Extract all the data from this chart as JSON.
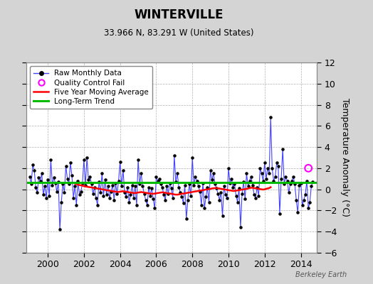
{
  "title": "WINTERVILLE",
  "subtitle": "33.966 N, 83.291 W (United States)",
  "ylabel": "Temperature Anomaly (°C)",
  "ylim": [
    -6,
    12
  ],
  "yticks": [
    -6,
    -4,
    -2,
    0,
    2,
    4,
    6,
    8,
    10,
    12
  ],
  "xlim": [
    1998.8,
    2014.9
  ],
  "xticks": [
    2000,
    2002,
    2004,
    2006,
    2008,
    2010,
    2012,
    2014
  ],
  "background_color": "#d4d4d4",
  "plot_bg_color": "#ffffff",
  "grid_color": "#b0b0b0",
  "raw_color": "#4444ff",
  "dot_color": "#000000",
  "ma_color": "#ff0000",
  "trend_color": "#00bb00",
  "qc_color": "#ff00ff",
  "watermark": "Berkeley Earth",
  "long_term_trend_value": 0.65,
  "raw_data": [
    [
      1999.0,
      1.2
    ],
    [
      1999.083,
      0.5
    ],
    [
      1999.167,
      2.3
    ],
    [
      1999.25,
      1.8
    ],
    [
      1999.333,
      0.2
    ],
    [
      1999.417,
      -0.3
    ],
    [
      1999.5,
      1.1
    ],
    [
      1999.583,
      0.8
    ],
    [
      1999.667,
      1.5
    ],
    [
      1999.75,
      -0.5
    ],
    [
      1999.833,
      0.3
    ],
    [
      1999.917,
      -0.8
    ],
    [
      2000.0,
      0.9
    ],
    [
      2000.083,
      -0.6
    ],
    [
      2000.167,
      2.8
    ],
    [
      2000.25,
      0.4
    ],
    [
      2000.333,
      1.1
    ],
    [
      2000.417,
      0.6
    ],
    [
      2000.5,
      -0.2
    ],
    [
      2000.583,
      0.7
    ],
    [
      2000.667,
      -3.8
    ],
    [
      2000.75,
      -1.2
    ],
    [
      2000.833,
      0.5
    ],
    [
      2000.917,
      -0.3
    ],
    [
      2001.0,
      2.2
    ],
    [
      2001.083,
      1.0
    ],
    [
      2001.167,
      0.5
    ],
    [
      2001.25,
      2.5
    ],
    [
      2001.333,
      1.3
    ],
    [
      2001.417,
      -0.8
    ],
    [
      2001.5,
      0.3
    ],
    [
      2001.583,
      -1.5
    ],
    [
      2001.667,
      0.8
    ],
    [
      2001.75,
      -0.5
    ],
    [
      2001.833,
      -0.2
    ],
    [
      2001.917,
      0.6
    ],
    [
      2002.0,
      2.8
    ],
    [
      2002.083,
      0.4
    ],
    [
      2002.167,
      3.0
    ],
    [
      2002.25,
      0.9
    ],
    [
      2002.333,
      1.2
    ],
    [
      2002.417,
      0.5
    ],
    [
      2002.5,
      -0.4
    ],
    [
      2002.583,
      0.2
    ],
    [
      2002.667,
      -0.8
    ],
    [
      2002.75,
      -1.5
    ],
    [
      2002.833,
      0.7
    ],
    [
      2002.917,
      -0.3
    ],
    [
      2003.0,
      1.5
    ],
    [
      2003.083,
      -0.6
    ],
    [
      2003.167,
      0.9
    ],
    [
      2003.25,
      -0.5
    ],
    [
      2003.333,
      0.3
    ],
    [
      2003.417,
      -0.8
    ],
    [
      2003.5,
      -0.2
    ],
    [
      2003.583,
      0.4
    ],
    [
      2003.667,
      -1.0
    ],
    [
      2003.75,
      0.6
    ],
    [
      2003.833,
      -0.4
    ],
    [
      2003.917,
      0.8
    ],
    [
      2004.0,
      2.6
    ],
    [
      2004.083,
      0.3
    ],
    [
      2004.167,
      1.8
    ],
    [
      2004.25,
      -0.3
    ],
    [
      2004.333,
      -0.7
    ],
    [
      2004.417,
      0.2
    ],
    [
      2004.5,
      -1.2
    ],
    [
      2004.583,
      -0.5
    ],
    [
      2004.667,
      0.4
    ],
    [
      2004.75,
      -0.8
    ],
    [
      2004.833,
      0.3
    ],
    [
      2004.917,
      -1.5
    ],
    [
      2005.0,
      2.8
    ],
    [
      2005.083,
      0.5
    ],
    [
      2005.167,
      1.5
    ],
    [
      2005.25,
      0.3
    ],
    [
      2005.333,
      -0.4
    ],
    [
      2005.417,
      -1.0
    ],
    [
      2005.5,
      -1.5
    ],
    [
      2005.583,
      0.2
    ],
    [
      2005.667,
      -0.6
    ],
    [
      2005.75,
      0.1
    ],
    [
      2005.833,
      -0.9
    ],
    [
      2005.917,
      -1.8
    ],
    [
      2006.0,
      1.2
    ],
    [
      2006.083,
      0.8
    ],
    [
      2006.167,
      1.0
    ],
    [
      2006.25,
      0.5
    ],
    [
      2006.333,
      0.2
    ],
    [
      2006.417,
      -0.5
    ],
    [
      2006.5,
      -1.0
    ],
    [
      2006.583,
      0.3
    ],
    [
      2006.667,
      -0.4
    ],
    [
      2006.75,
      0.6
    ],
    [
      2006.833,
      0.1
    ],
    [
      2006.917,
      -0.8
    ],
    [
      2007.0,
      3.2
    ],
    [
      2007.083,
      0.7
    ],
    [
      2007.167,
      1.5
    ],
    [
      2007.25,
      0.2
    ],
    [
      2007.333,
      -0.3
    ],
    [
      2007.417,
      -0.7
    ],
    [
      2007.5,
      -1.3
    ],
    [
      2007.583,
      0.4
    ],
    [
      2007.667,
      -2.8
    ],
    [
      2007.75,
      -1.0
    ],
    [
      2007.833,
      0.5
    ],
    [
      2007.917,
      -0.6
    ],
    [
      2008.0,
      3.0
    ],
    [
      2008.083,
      0.4
    ],
    [
      2008.167,
      1.2
    ],
    [
      2008.25,
      0.8
    ],
    [
      2008.333,
      0.3
    ],
    [
      2008.417,
      -0.2
    ],
    [
      2008.5,
      -1.5
    ],
    [
      2008.583,
      0.6
    ],
    [
      2008.667,
      -1.8
    ],
    [
      2008.75,
      -0.7
    ],
    [
      2008.833,
      0.2
    ],
    [
      2008.917,
      -1.2
    ],
    [
      2009.0,
      1.8
    ],
    [
      2009.083,
      0.9
    ],
    [
      2009.167,
      1.5
    ],
    [
      2009.25,
      0.5
    ],
    [
      2009.333,
      0.1
    ],
    [
      2009.417,
      -0.4
    ],
    [
      2009.5,
      -1.0
    ],
    [
      2009.583,
      -0.3
    ],
    [
      2009.667,
      -2.5
    ],
    [
      2009.75,
      0.3
    ],
    [
      2009.833,
      -0.5
    ],
    [
      2009.917,
      -0.8
    ],
    [
      2010.0,
      2.0
    ],
    [
      2010.083,
      0.6
    ],
    [
      2010.167,
      1.0
    ],
    [
      2010.25,
      0.2
    ],
    [
      2010.333,
      0.5
    ],
    [
      2010.417,
      -0.6
    ],
    [
      2010.5,
      -1.2
    ],
    [
      2010.583,
      0.1
    ],
    [
      2010.667,
      -3.6
    ],
    [
      2010.75,
      -0.4
    ],
    [
      2010.833,
      0.7
    ],
    [
      2010.917,
      -0.9
    ],
    [
      2011.0,
      1.5
    ],
    [
      2011.083,
      0.3
    ],
    [
      2011.167,
      0.8
    ],
    [
      2011.25,
      1.2
    ],
    [
      2011.333,
      0.4
    ],
    [
      2011.417,
      -0.5
    ],
    [
      2011.5,
      -0.8
    ],
    [
      2011.583,
      0.2
    ],
    [
      2011.667,
      -0.6
    ],
    [
      2011.75,
      2.0
    ],
    [
      2011.833,
      1.5
    ],
    [
      2011.917,
      0.8
    ],
    [
      2012.0,
      2.5
    ],
    [
      2012.083,
      1.0
    ],
    [
      2012.167,
      2.0
    ],
    [
      2012.25,
      1.5
    ],
    [
      2012.333,
      6.8
    ],
    [
      2012.417,
      2.0
    ],
    [
      2012.5,
      0.8
    ],
    [
      2012.583,
      1.2
    ],
    [
      2012.667,
      2.5
    ],
    [
      2012.75,
      2.2
    ],
    [
      2012.833,
      -2.3
    ],
    [
      2012.917,
      1.0
    ],
    [
      2013.0,
      3.8
    ],
    [
      2013.083,
      0.5
    ],
    [
      2013.167,
      1.2
    ],
    [
      2013.25,
      0.8
    ],
    [
      2013.333,
      -0.3
    ],
    [
      2013.417,
      0.5
    ],
    [
      2013.5,
      0.8
    ],
    [
      2013.583,
      1.2
    ],
    [
      2013.667,
      0.5
    ],
    [
      2013.75,
      -1.0
    ],
    [
      2013.833,
      -2.2
    ],
    [
      2013.917,
      0.4
    ],
    [
      2014.0,
      0.6
    ],
    [
      2014.083,
      -1.5
    ],
    [
      2014.167,
      -1.0
    ],
    [
      2014.25,
      -0.5
    ],
    [
      2014.333,
      0.8
    ],
    [
      2014.417,
      -1.8
    ],
    [
      2014.5,
      -1.2
    ],
    [
      2014.583,
      0.3
    ],
    [
      2014.667,
      0.7
    ]
  ],
  "moving_avg": [
    [
      2001.5,
      0.55
    ],
    [
      2001.583,
      0.5
    ],
    [
      2001.667,
      0.45
    ],
    [
      2001.75,
      0.4
    ],
    [
      2001.833,
      0.38
    ],
    [
      2001.917,
      0.35
    ],
    [
      2002.0,
      0.3
    ],
    [
      2002.083,
      0.28
    ],
    [
      2002.167,
      0.25
    ],
    [
      2002.25,
      0.22
    ],
    [
      2002.333,
      0.2
    ],
    [
      2002.417,
      0.18
    ],
    [
      2002.5,
      0.15
    ],
    [
      2002.583,
      0.12
    ],
    [
      2002.667,
      0.1
    ],
    [
      2002.75,
      0.08
    ],
    [
      2002.833,
      0.05
    ],
    [
      2002.917,
      0.03
    ],
    [
      2003.0,
      0.0
    ],
    [
      2003.083,
      -0.02
    ],
    [
      2003.167,
      -0.05
    ],
    [
      2003.25,
      -0.08
    ],
    [
      2003.333,
      -0.1
    ],
    [
      2003.417,
      -0.12
    ],
    [
      2003.5,
      -0.15
    ],
    [
      2003.583,
      -0.18
    ],
    [
      2003.667,
      -0.2
    ],
    [
      2003.75,
      -0.22
    ],
    [
      2003.833,
      -0.25
    ],
    [
      2003.917,
      -0.25
    ],
    [
      2004.0,
      -0.22
    ],
    [
      2004.083,
      -0.2
    ],
    [
      2004.167,
      -0.18
    ],
    [
      2004.25,
      -0.2
    ],
    [
      2004.333,
      -0.22
    ],
    [
      2004.417,
      -0.25
    ],
    [
      2004.5,
      -0.28
    ],
    [
      2004.583,
      -0.3
    ],
    [
      2004.667,
      -0.32
    ],
    [
      2004.75,
      -0.35
    ],
    [
      2004.833,
      -0.35
    ],
    [
      2004.917,
      -0.33
    ],
    [
      2005.0,
      -0.3
    ],
    [
      2005.083,
      -0.28
    ],
    [
      2005.167,
      -0.25
    ],
    [
      2005.25,
      -0.28
    ],
    [
      2005.333,
      -0.3
    ],
    [
      2005.417,
      -0.32
    ],
    [
      2005.5,
      -0.35
    ],
    [
      2005.583,
      -0.38
    ],
    [
      2005.667,
      -0.4
    ],
    [
      2005.75,
      -0.42
    ],
    [
      2005.833,
      -0.42
    ],
    [
      2005.917,
      -0.4
    ],
    [
      2006.0,
      -0.38
    ],
    [
      2006.083,
      -0.35
    ],
    [
      2006.167,
      -0.33
    ],
    [
      2006.25,
      -0.3
    ],
    [
      2006.333,
      -0.28
    ],
    [
      2006.417,
      -0.3
    ],
    [
      2006.5,
      -0.32
    ],
    [
      2006.583,
      -0.35
    ],
    [
      2006.667,
      -0.38
    ],
    [
      2006.75,
      -0.4
    ],
    [
      2006.833,
      -0.42
    ],
    [
      2006.917,
      -0.45
    ],
    [
      2007.0,
      -0.48
    ],
    [
      2007.083,
      -0.5
    ],
    [
      2007.167,
      -0.5
    ],
    [
      2007.25,
      -0.48
    ],
    [
      2007.333,
      -0.45
    ],
    [
      2007.417,
      -0.42
    ],
    [
      2007.5,
      -0.4
    ],
    [
      2007.583,
      -0.38
    ],
    [
      2007.667,
      -0.35
    ],
    [
      2007.75,
      -0.32
    ],
    [
      2007.833,
      -0.3
    ],
    [
      2007.917,
      -0.28
    ],
    [
      2008.0,
      -0.25
    ],
    [
      2008.083,
      -0.22
    ],
    [
      2008.167,
      -0.2
    ],
    [
      2008.25,
      -0.18
    ],
    [
      2008.333,
      -0.15
    ],
    [
      2008.417,
      -0.12
    ],
    [
      2008.5,
      -0.1
    ],
    [
      2008.583,
      -0.08
    ],
    [
      2008.667,
      -0.05
    ],
    [
      2008.75,
      -0.02
    ],
    [
      2008.833,
      0.0
    ],
    [
      2008.917,
      0.02
    ],
    [
      2009.0,
      0.05
    ],
    [
      2009.083,
      0.08
    ],
    [
      2009.167,
      0.1
    ],
    [
      2009.25,
      0.12
    ],
    [
      2009.333,
      0.12
    ],
    [
      2009.417,
      0.1
    ],
    [
      2009.5,
      0.08
    ],
    [
      2009.583,
      0.05
    ],
    [
      2009.667,
      0.02
    ],
    [
      2009.75,
      0.0
    ],
    [
      2009.833,
      -0.02
    ],
    [
      2009.917,
      -0.05
    ],
    [
      2010.0,
      -0.08
    ],
    [
      2010.083,
      -0.1
    ],
    [
      2010.167,
      -0.12
    ],
    [
      2010.25,
      -0.15
    ],
    [
      2010.333,
      -0.15
    ],
    [
      2010.417,
      -0.12
    ],
    [
      2010.5,
      -0.1
    ],
    [
      2010.583,
      -0.08
    ],
    [
      2010.667,
      -0.05
    ],
    [
      2010.75,
      -0.02
    ],
    [
      2010.833,
      0.0
    ],
    [
      2010.917,
      0.02
    ],
    [
      2011.0,
      0.05
    ],
    [
      2011.083,
      0.08
    ],
    [
      2011.167,
      0.12
    ],
    [
      2011.25,
      0.15
    ],
    [
      2011.333,
      0.15
    ],
    [
      2011.417,
      0.12
    ],
    [
      2011.5,
      0.1
    ],
    [
      2011.583,
      0.08
    ],
    [
      2011.667,
      0.05
    ],
    [
      2011.75,
      0.02
    ],
    [
      2011.833,
      0.0
    ],
    [
      2011.917,
      -0.02
    ],
    [
      2012.0,
      0.0
    ],
    [
      2012.083,
      0.05
    ],
    [
      2012.167,
      0.08
    ],
    [
      2012.25,
      0.12
    ],
    [
      2012.333,
      0.2
    ]
  ],
  "qc_fail_points": [
    [
      2014.42,
      2.0
    ]
  ],
  "legend_labels": [
    "Raw Monthly Data",
    "Quality Control Fail",
    "Five Year Moving Average",
    "Long-Term Trend"
  ]
}
